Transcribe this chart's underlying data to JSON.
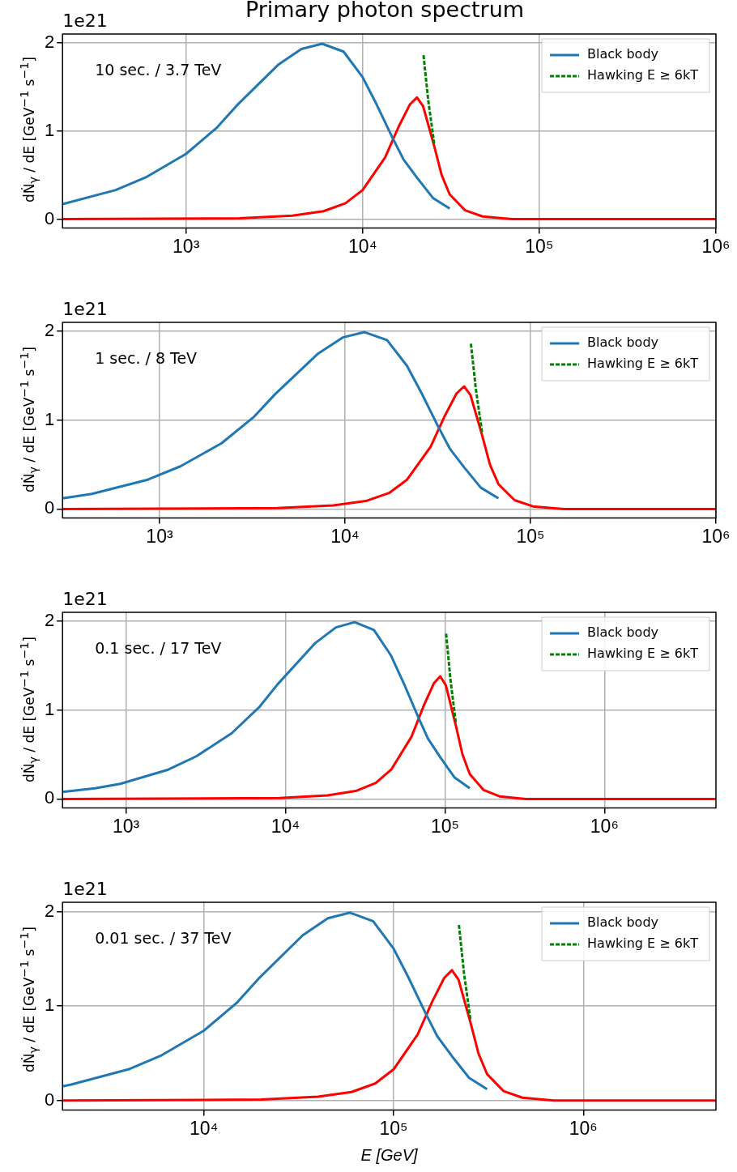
{
  "chart_data": [
    {
      "type": "line",
      "title": "Primary photon spectrum",
      "ylabel": "dṄ$_{γ}$ / dE [GeV$^{−1}$ s$^{−1}$]",
      "annotations": [
        "1e21",
        "10 sec. / 3.7 TeV"
      ],
      "xlim": [
        200,
        1000000
      ],
      "xticks": [
        {
          "value": 1000,
          "label": "10³"
        },
        {
          "value": 10000,
          "label": "10⁴"
        },
        {
          "value": 100000,
          "label": "10⁵"
        },
        {
          "value": 1000000,
          "label": "10⁶"
        }
      ],
      "ylim": [
        -0.1,
        2.1
      ],
      "yticks": [
        0,
        1,
        2
      ],
      "log": "x",
      "grid": true,
      "legend": "top right",
      "marker": "none",
      "series": [
        {
          "name": "Black body",
          "color": "#1f77b4",
          "x": [
            200,
            400,
            600,
            1000,
            1500,
            1940,
            3320,
            4500,
            5900,
            7800,
            10000,
            12000,
            14700,
            17000,
            20300,
            25000,
            31100
          ],
          "values": [
            0.17,
            0.33,
            0.48,
            0.74,
            1.04,
            1.29,
            1.75,
            1.93,
            1.99,
            1.9,
            1.61,
            1.3,
            0.93,
            0.68,
            0.47,
            0.24,
            0.12
          ]
        },
        {
          "name": "Hawking E ≥ 6kT",
          "color": "#008000",
          "line_style": "dashed",
          "x": [
            22100,
            23500,
            25400
          ],
          "values": [
            1.86,
            1.35,
            0.86
          ]
        },
        {
          "color": "#ff0000",
          "x": [
            200,
            2000,
            4000,
            6000,
            8000,
            10000,
            13400,
            16000,
            18500,
            20300,
            22000,
            25400,
            28000,
            31100,
            38000,
            47700,
            70000,
            100000,
            1000000
          ],
          "values": [
            0,
            0.01,
            0.04,
            0.09,
            0.18,
            0.33,
            0.7,
            1.05,
            1.3,
            1.38,
            1.28,
            0.83,
            0.5,
            0.28,
            0.1,
            0.03,
            0,
            0,
            0
          ]
        }
      ]
    },
    {
      "type": "line",
      "ylabel": "dṄ$_{γ}$ / dE [GeV$^{−1}$ s$^{−1}$]",
      "annotations": [
        "1e21",
        "1 sec. / 8 TeV"
      ],
      "xlim": [
        300,
        1000000
      ],
      "xticks": [
        {
          "value": 1000,
          "label": "10³"
        },
        {
          "value": 10000,
          "label": "10⁴"
        },
        {
          "value": 100000,
          "label": "10⁵"
        },
        {
          "value": 1000000,
          "label": "10⁶"
        }
      ],
      "ylim": [
        -0.1,
        2.1
      ],
      "yticks": [
        0,
        1,
        2
      ],
      "log": "x",
      "grid": true,
      "legend": "top right",
      "marker": "none",
      "series": [
        {
          "name": "Black body",
          "color": "#1f77b4",
          "x": [
            300,
            432,
            864,
            1296,
            2160,
            3240,
            4190,
            7170,
            9720,
            12740,
            16850,
            21600,
            25920,
            31750,
            36720,
            43850,
            54000,
            67180
          ],
          "values": [
            0.12,
            0.17,
            0.33,
            0.48,
            0.74,
            1.04,
            1.29,
            1.75,
            1.93,
            1.99,
            1.9,
            1.61,
            1.3,
            0.93,
            0.68,
            0.47,
            0.24,
            0.12
          ]
        },
        {
          "name": "Hawking E ≥ 6kT",
          "color": "#008000",
          "line_style": "dashed",
          "x": [
            47740,
            50760,
            54860
          ],
          "values": [
            1.86,
            1.35,
            0.86
          ]
        },
        {
          "color": "#ff0000",
          "x": [
            300,
            4320,
            8640,
            12960,
            17280,
            21600,
            28940,
            34560,
            39960,
            43850,
            47520,
            54860,
            60480,
            67180,
            82080,
            103000,
            151200,
            216000,
            1000000
          ],
          "values": [
            0,
            0.01,
            0.04,
            0.09,
            0.18,
            0.33,
            0.7,
            1.05,
            1.3,
            1.38,
            1.28,
            0.83,
            0.5,
            0.28,
            0.1,
            0.03,
            0,
            0,
            0
          ]
        }
      ]
    },
    {
      "type": "line",
      "ylabel": "dṄ$_{γ}$ / dE [GeV$^{−1}$ s$^{−1}$]",
      "annotations": [
        "1e21",
        "0.1 sec. / 17 TeV"
      ],
      "xlim": [
        400,
        5000000
      ],
      "xticks": [
        {
          "value": 1000,
          "label": "10³"
        },
        {
          "value": 10000,
          "label": "10⁴"
        },
        {
          "value": 100000,
          "label": "10⁵"
        },
        {
          "value": 1000000,
          "label": "10⁶"
        }
      ],
      "ylim": [
        -0.1,
        2.1
      ],
      "yticks": [
        0,
        1,
        2
      ],
      "log": "x",
      "grid": true,
      "legend": "top right",
      "marker": "none",
      "series": [
        {
          "name": "Black body",
          "color": "#1f77b4",
          "x": [
            400,
            640,
            920,
            1840,
            2760,
            4600,
            6900,
            8920,
            15270,
            20700,
            27140,
            35880,
            46000,
            55200,
            67620,
            78200,
            93380,
            115000,
            143060
          ],
          "values": [
            0.08,
            0.12,
            0.17,
            0.33,
            0.48,
            0.74,
            1.04,
            1.29,
            1.75,
            1.93,
            1.99,
            1.9,
            1.61,
            1.3,
            0.93,
            0.68,
            0.47,
            0.24,
            0.12
          ]
        },
        {
          "name": "Hawking E ≥ 6kT",
          "color": "#008000",
          "line_style": "dashed",
          "x": [
            101660,
            108100,
            116840
          ],
          "values": [
            1.86,
            1.35,
            0.86
          ]
        },
        {
          "color": "#ff0000",
          "x": [
            400,
            9200,
            18400,
            27600,
            36800,
            46000,
            61640,
            73600,
            85100,
            93380,
            101200,
            116840,
            128800,
            143060,
            174800,
            219420,
            322000,
            460000,
            5000000
          ],
          "values": [
            0,
            0.01,
            0.04,
            0.09,
            0.18,
            0.33,
            0.7,
            1.05,
            1.3,
            1.38,
            1.28,
            0.83,
            0.5,
            0.28,
            0.1,
            0.03,
            0,
            0,
            0
          ]
        }
      ]
    },
    {
      "type": "line",
      "xlabel": "E [GeV]",
      "ylabel": "dṄ$_{γ}$ / dE [GeV$^{−1}$ s$^{−1}$]",
      "annotations": [
        "1e21",
        "0.01 sec. / 37 TeV"
      ],
      "xlim": [
        1800,
        5000000
      ],
      "xticks": [
        {
          "value": 10000,
          "label": "10⁴"
        },
        {
          "value": 100000,
          "label": "10⁵"
        },
        {
          "value": 1000000,
          "label": "10⁶"
        }
      ],
      "ylim": [
        -0.1,
        2.1
      ],
      "yticks": [
        0,
        1,
        2
      ],
      "log": "x",
      "grid": true,
      "legend": "top right",
      "marker": "none",
      "series": [
        {
          "name": "Black body",
          "color": "#1f77b4",
          "x": [
            1800,
            2000,
            4000,
            6000,
            10000,
            15000,
            19400,
            33200,
            45000,
            59000,
            78000,
            100000,
            120000,
            147000,
            170000,
            203000,
            250000,
            311000
          ],
          "values": [
            0.15,
            0.17,
            0.33,
            0.48,
            0.74,
            1.04,
            1.29,
            1.75,
            1.93,
            1.99,
            1.9,
            1.61,
            1.3,
            0.93,
            0.68,
            0.47,
            0.24,
            0.12
          ]
        },
        {
          "name": "Hawking E ≥ 6kT",
          "color": "#008000",
          "line_style": "dashed",
          "x": [
            221000,
            235000,
            254000
          ],
          "values": [
            1.86,
            1.35,
            0.86
          ]
        },
        {
          "color": "#ff0000",
          "x": [
            1800,
            20000,
            40000,
            60000,
            80000,
            100000,
            134000,
            160000,
            185000,
            203000,
            220000,
            254000,
            280000,
            311000,
            380000,
            477000,
            700000,
            1000000,
            5000000
          ],
          "values": [
            0,
            0.01,
            0.04,
            0.09,
            0.18,
            0.33,
            0.7,
            1.05,
            1.3,
            1.38,
            1.28,
            0.83,
            0.5,
            0.28,
            0.1,
            0.03,
            0,
            0,
            0
          ]
        }
      ]
    }
  ]
}
